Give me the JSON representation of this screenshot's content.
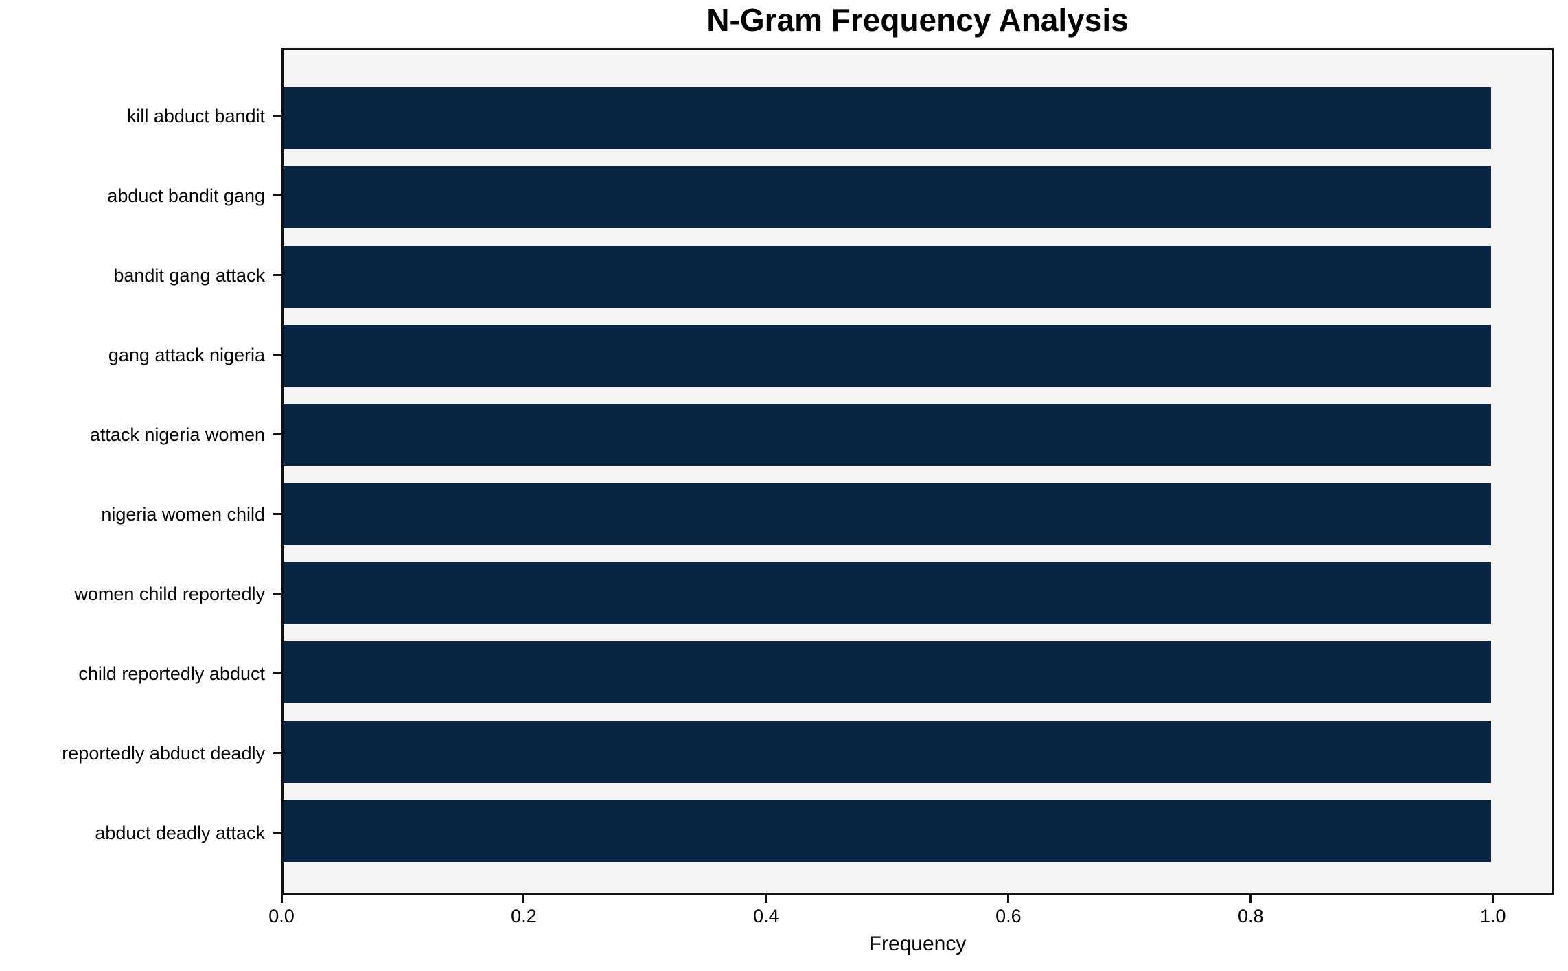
{
  "chart_data": {
    "type": "bar",
    "orientation": "horizontal",
    "title": "N-Gram Frequency Analysis",
    "xlabel": "Frequency",
    "ylabel": "",
    "categories": [
      "kill abduct bandit",
      "abduct bandit gang",
      "bandit gang attack",
      "gang attack nigeria",
      "attack nigeria women",
      "nigeria women child",
      "women child reportedly",
      "child reportedly abduct",
      "reportedly abduct deadly",
      "abduct deadly attack"
    ],
    "values": [
      1.0,
      1.0,
      1.0,
      1.0,
      1.0,
      1.0,
      1.0,
      1.0,
      1.0,
      1.0
    ],
    "xlim": [
      0,
      1.05
    ],
    "x_ticks": [
      0.0,
      0.2,
      0.4,
      0.6,
      0.8,
      1.0
    ],
    "x_tick_labels": [
      "0.0",
      "0.2",
      "0.4",
      "0.6",
      "0.8",
      "1.0"
    ],
    "grid": false,
    "legend": null,
    "bar_color": "#0a2444",
    "plot_background": "#f5f5f5",
    "figure_background": "#ffffff",
    "spine_color": "#111111",
    "text_color": "#000000"
  }
}
